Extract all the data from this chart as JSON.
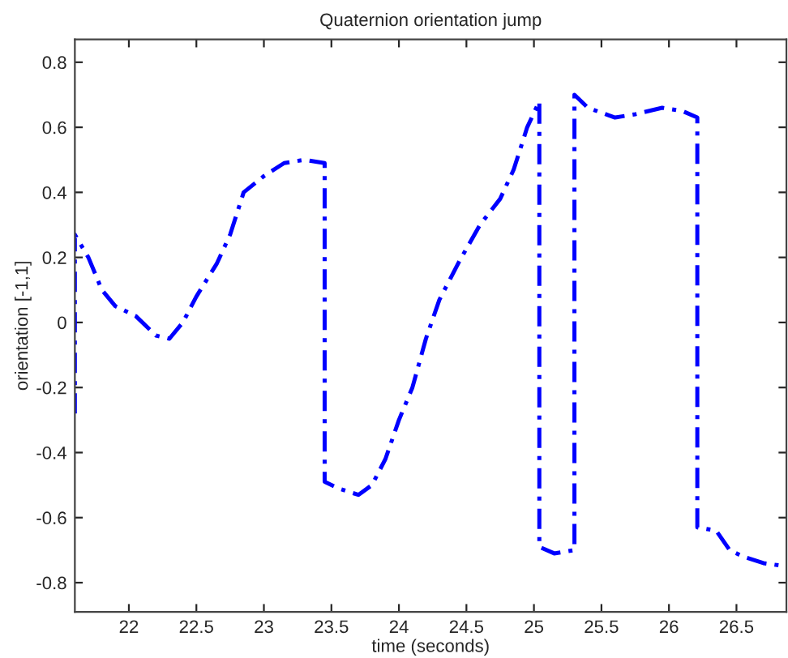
{
  "chart_data": {
    "type": "line",
    "title": "Quaternion orientation jump",
    "xlabel": "time (seconds)",
    "ylabel": "orientation [-1,1]",
    "x": [
      21.6,
      21.6,
      21.7,
      21.8,
      21.9,
      22.05,
      22.2,
      22.3,
      22.4,
      22.5,
      22.65,
      22.75,
      22.85,
      23.0,
      23.15,
      23.3,
      23.45,
      23.45,
      23.55,
      23.7,
      23.8,
      23.9,
      24.0,
      24.1,
      24.2,
      24.3,
      24.45,
      24.6,
      24.75,
      24.85,
      24.95,
      25.04,
      25.04,
      25.15,
      25.3,
      25.3,
      25.4,
      25.6,
      25.75,
      25.95,
      26.1,
      26.21,
      26.21,
      26.35,
      26.45,
      26.55,
      26.7,
      26.87
    ],
    "series": [
      {
        "color": "#0000ff",
        "values": [
          -0.28,
          0.27,
          0.2,
          0.1,
          0.05,
          0.02,
          -0.04,
          -0.05,
          0.0,
          0.08,
          0.18,
          0.27,
          0.4,
          0.45,
          0.49,
          0.5,
          0.49,
          -0.49,
          -0.51,
          -0.53,
          -0.5,
          -0.42,
          -0.3,
          -0.2,
          -0.05,
          0.07,
          0.19,
          0.3,
          0.38,
          0.47,
          0.6,
          0.68,
          -0.69,
          -0.71,
          -0.7,
          0.7,
          0.66,
          0.63,
          0.64,
          0.66,
          0.65,
          0.63,
          -0.63,
          -0.64,
          -0.7,
          -0.72,
          -0.74,
          -0.75
        ]
      }
    ],
    "xlim": [
      21.6,
      26.87
    ],
    "ylim": [
      -0.89,
      0.87
    ],
    "xticks": [
      22,
      22.5,
      23,
      23.5,
      24,
      24.5,
      25,
      25.5,
      26,
      26.5
    ],
    "yticks": [
      -0.8,
      -0.6,
      -0.4,
      -0.2,
      0,
      0.2,
      0.4,
      0.6,
      0.8
    ],
    "line_style": "dashed",
    "marker": "none",
    "grid": false,
    "legend": false
  }
}
